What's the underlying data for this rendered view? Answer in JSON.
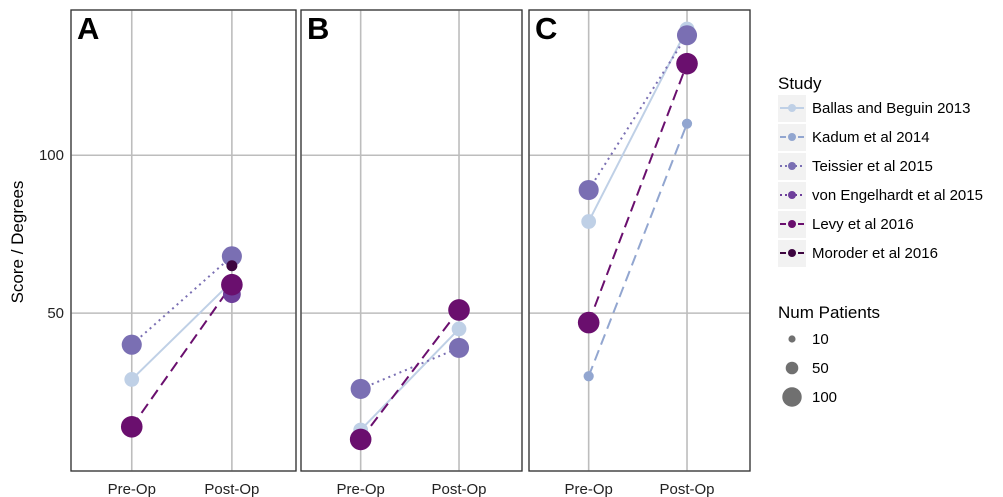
{
  "chart_data": {
    "type": "line",
    "ylabel": "Score / Degrees",
    "categories": [
      "Pre-Op",
      "Post-Op"
    ],
    "yticks": [
      50,
      100
    ],
    "ylim": [
      0,
      146
    ],
    "grid": true,
    "legend_position": "right",
    "study_legend_title": "Study",
    "size_legend_title": "Num Patients",
    "size_legend": [
      {
        "label": "10",
        "value": 10
      },
      {
        "label": "50",
        "value": 50
      },
      {
        "label": "100",
        "value": 100
      }
    ],
    "series_styles": [
      {
        "name": "Ballas and Beguin 2013",
        "color": "#bfd0e6",
        "dash": "solid"
      },
      {
        "name": "Kadum et al 2014",
        "color": "#92a6d0",
        "dash": "dashed"
      },
      {
        "name": "Teissier et al 2015",
        "color": "#7a6fb3",
        "dash": "dotted"
      },
      {
        "name": "von Engelhardt et al 2015",
        "color": "#6e3f9b",
        "dash": "dotted"
      },
      {
        "name": "Levy et al 2016",
        "color": "#6a0f6e",
        "dash": "dashed"
      },
      {
        "name": "Moroder et al 2016",
        "color": "#3d0540",
        "dash": "dashed"
      }
    ],
    "panels": [
      {
        "label": "A",
        "series": [
          {
            "name": "Ballas and Beguin 2013",
            "values": [
              29,
              60
            ],
            "n": 55
          },
          {
            "name": "Teissier et al 2015",
            "values": [
              40,
              68
            ],
            "n": 90
          },
          {
            "name": "von Engelhardt et al 2015",
            "values": [
              null,
              56
            ],
            "n": 75
          },
          {
            "name": "Levy et al 2016",
            "values": [
              14,
              59
            ],
            "n": 100
          },
          {
            "name": "Moroder et al 2016",
            "values": [
              null,
              65
            ],
            "n": 30
          }
        ]
      },
      {
        "label": "B",
        "series": [
          {
            "name": "Ballas and Beguin 2013",
            "values": [
              13,
              45
            ],
            "n": 55
          },
          {
            "name": "Teissier et al 2015",
            "values": [
              26,
              39
            ],
            "n": 90
          },
          {
            "name": "Levy et al 2016",
            "values": [
              10,
              51
            ],
            "n": 100
          }
        ]
      },
      {
        "label": "C",
        "series": [
          {
            "name": "Ballas and Beguin 2013",
            "values": [
              79,
              140
            ],
            "n": 55
          },
          {
            "name": "Kadum et al 2014",
            "values": [
              30,
              110
            ],
            "n": 25
          },
          {
            "name": "Teissier et al 2015",
            "values": [
              89,
              138
            ],
            "n": 90
          },
          {
            "name": "Levy et al 2016",
            "values": [
              47,
              129
            ],
            "n": 100
          }
        ]
      }
    ]
  }
}
